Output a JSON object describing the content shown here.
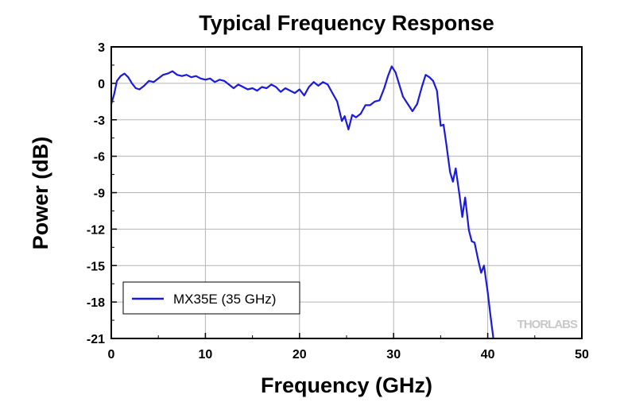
{
  "chart_data": {
    "type": "line",
    "title": "Typical Frequency Response",
    "xlabel": "Frequency (GHz)",
    "ylabel": "Power (dB)",
    "xlim": [
      0,
      50
    ],
    "ylim": [
      -21,
      3
    ],
    "xticks": [
      "0",
      "10",
      "20",
      "30",
      "40",
      "50"
    ],
    "yticks": [
      "3",
      "0",
      "-3",
      "-6",
      "-9",
      "-12",
      "-15",
      "-18",
      "-21"
    ],
    "grid": true,
    "legend_position": "bottom-left",
    "series": [
      {
        "name": "MX35E (35 GHz)",
        "color": "#1a1adc",
        "x": [
          0,
          0.3,
          0.6,
          1.0,
          1.4,
          1.8,
          2.2,
          2.6,
          3.0,
          3.5,
          4.0,
          4.5,
          5.0,
          5.5,
          6.0,
          6.5,
          7.0,
          7.5,
          8.0,
          8.5,
          9.0,
          9.5,
          10.0,
          10.5,
          11.0,
          11.5,
          12.0,
          12.5,
          13.0,
          13.5,
          14.0,
          14.5,
          15.0,
          15.5,
          16.0,
          16.5,
          17.0,
          17.5,
          18.0,
          18.5,
          19.0,
          19.5,
          20.0,
          20.5,
          21.0,
          21.5,
          22.0,
          22.5,
          23.0,
          23.5,
          24.0,
          24.5,
          24.8,
          25.2,
          25.6,
          26.0,
          26.5,
          27.0,
          27.5,
          28.0,
          28.5,
          29.0,
          29.4,
          29.8,
          30.2,
          30.6,
          31.0,
          31.5,
          32.0,
          32.5,
          33.0,
          33.4,
          33.8,
          34.2,
          34.6,
          35.0,
          35.3,
          35.6,
          36.0,
          36.3,
          36.6,
          37.0,
          37.3,
          37.6,
          38.0,
          38.3,
          38.6,
          39.0,
          39.3,
          39.6,
          40.0,
          40.3,
          40.6
        ],
        "y": [
          -1.7,
          -0.9,
          0.2,
          0.6,
          0.8,
          0.5,
          0.0,
          -0.4,
          -0.5,
          -0.2,
          0.2,
          0.1,
          0.4,
          0.7,
          0.8,
          1.0,
          0.7,
          0.6,
          0.7,
          0.5,
          0.6,
          0.4,
          0.3,
          0.4,
          0.1,
          0.3,
          0.2,
          -0.1,
          -0.4,
          -0.1,
          -0.3,
          -0.5,
          -0.4,
          -0.6,
          -0.3,
          -0.4,
          -0.1,
          -0.3,
          -0.7,
          -0.4,
          -0.6,
          -0.8,
          -0.5,
          -1.0,
          -0.3,
          0.1,
          -0.2,
          0.1,
          -0.1,
          -0.8,
          -1.5,
          -3.1,
          -2.7,
          -3.8,
          -2.6,
          -2.8,
          -2.5,
          -1.8,
          -1.8,
          -1.5,
          -1.4,
          -0.4,
          0.6,
          1.4,
          0.9,
          -0.1,
          -1.1,
          -1.7,
          -2.3,
          -1.7,
          -0.3,
          0.7,
          0.5,
          0.2,
          -0.6,
          -3.5,
          -3.4,
          -5.0,
          -7.3,
          -8.1,
          -7.0,
          -9.2,
          -11.0,
          -9.4,
          -12.1,
          -13.0,
          -13.1,
          -14.6,
          -15.6,
          -15.0,
          -17.2,
          -19.2,
          -21.0
        ]
      }
    ],
    "watermark": "THORLABS"
  }
}
